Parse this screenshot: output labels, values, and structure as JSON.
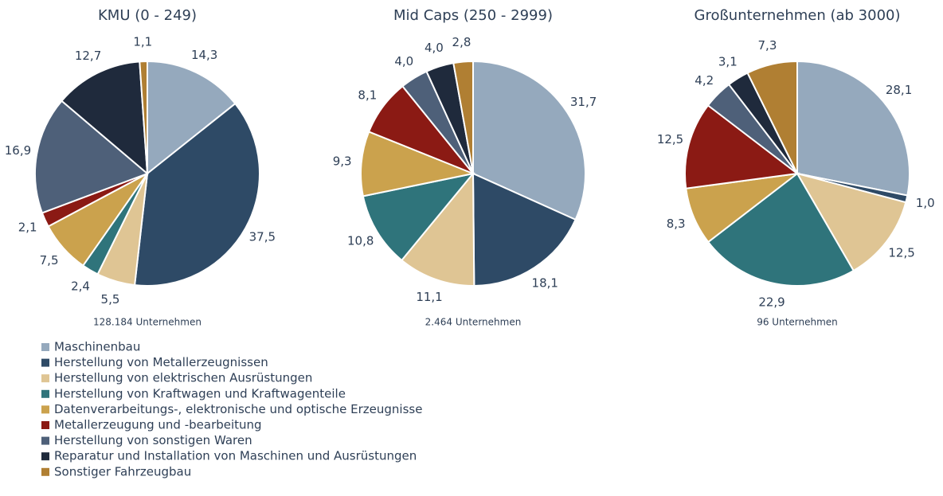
{
  "chart_data": [
    {
      "type": "pie",
      "title": "KMU (0 - 249)",
      "note": "128.184 Unternehmen",
      "values": [
        14.3,
        37.5,
        5.5,
        2.4,
        7.5,
        2.1,
        16.9,
        12.7,
        1.1
      ],
      "value_labels": [
        "14,3",
        "37,5",
        "5,5",
        "2,4",
        "7,5",
        "2,1",
        "16,9",
        "12,7",
        "1,1"
      ]
    },
    {
      "type": "pie",
      "title": "Mid Caps (250 - 2999)",
      "note": "2.464 Unternehmen",
      "values": [
        31.7,
        18.1,
        11.1,
        10.8,
        9.3,
        8.1,
        4.0,
        4.0,
        2.8
      ],
      "value_labels": [
        "31,7",
        "18,1",
        "11,1",
        "10,8",
        "9,3",
        "8,1",
        "4,0",
        "4,0",
        "2,8"
      ]
    },
    {
      "type": "pie",
      "title": "Großunternehmen  (ab 3000)",
      "note": "96 Unternehmen",
      "values": [
        28.1,
        1.0,
        12.5,
        22.9,
        8.3,
        12.5,
        4.2,
        3.1,
        7.3
      ],
      "value_labels": [
        "28,1",
        "1,0",
        "12,5",
        "22,9",
        "8,3",
        "12,5",
        "4,2",
        "3,1",
        "7,3"
      ]
    }
  ],
  "legend": {
    "categories": [
      "Maschinenbau",
      "Herstellung von Metallerzeugnissen",
      "Herstellung von elektrischen Ausrüstungen",
      "Herstellung von Kraftwagen und Kraftwagenteile",
      "Datenverarbeitungs-, elektronische und optische Erzeugnisse",
      "Metallerzeugung und -bearbeitung",
      "Herstellung von sonstigen Waren",
      "Reparatur und Installation von Maschinen und Ausrüstungen",
      "Sonstiger Fahrzeugbau"
    ],
    "colors": [
      "#95a9bd",
      "#2e4a66",
      "#dfc594",
      "#2f747b",
      "#cba24d",
      "#8b1a14",
      "#4e6079",
      "#1f2a3c",
      "#b07f33"
    ]
  }
}
